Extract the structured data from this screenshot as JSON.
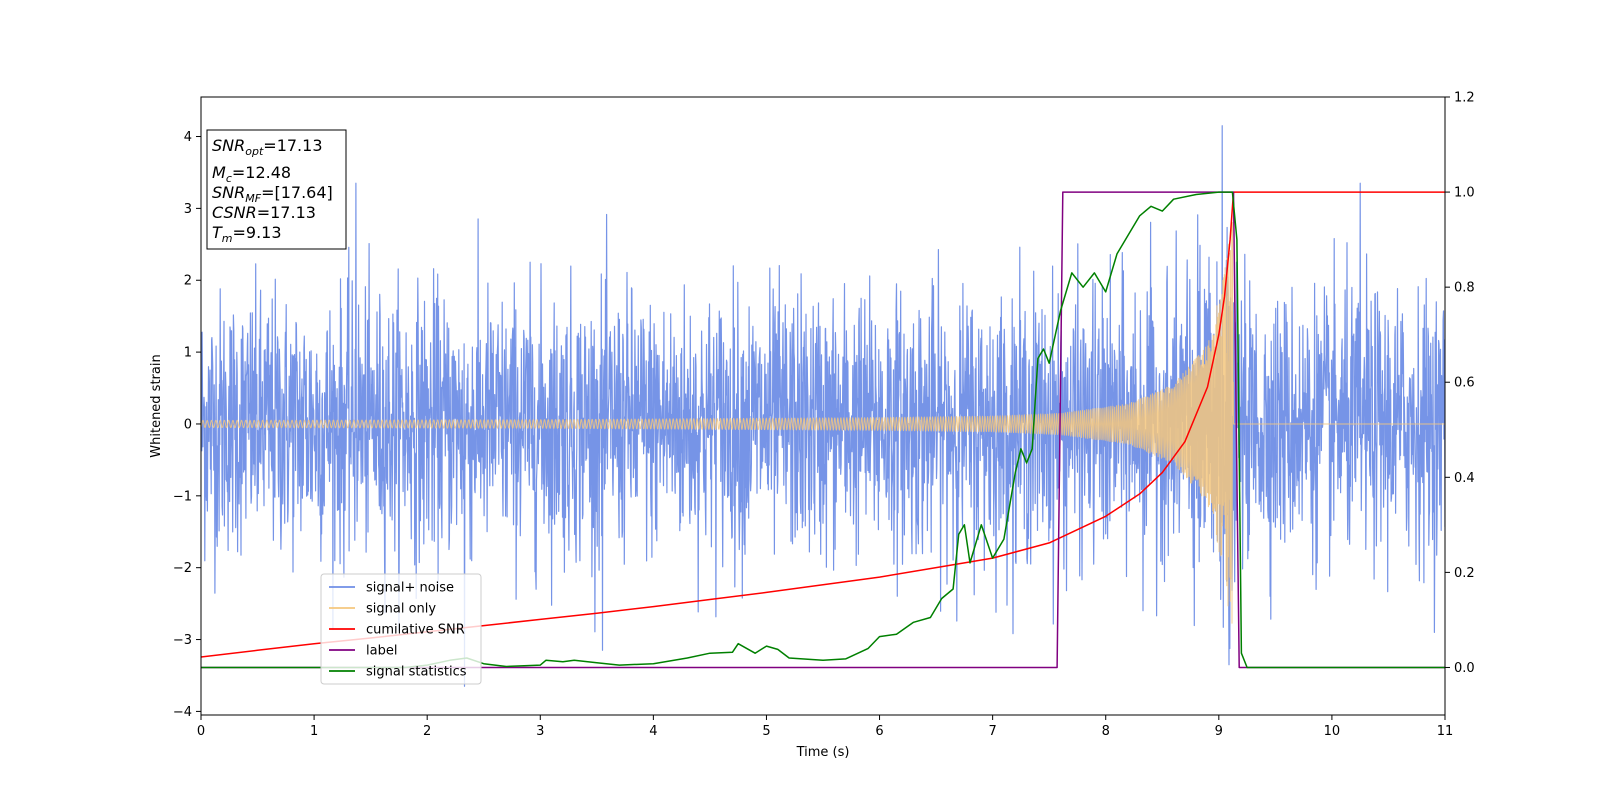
{
  "chart_data": {
    "type": "line",
    "title": "",
    "xlabel": "Time (s)",
    "ylabel": "Whitened strain",
    "y2label": "",
    "xlim": [
      0,
      11
    ],
    "ylim": [
      -4.05,
      4.55
    ],
    "y2lim": [
      -0.1,
      1.2
    ],
    "x_ticks": [
      0,
      1,
      2,
      3,
      4,
      5,
      6,
      7,
      8,
      9,
      10,
      11
    ],
    "y_ticks": [
      -4,
      -3,
      -2,
      -1,
      0,
      1,
      2,
      3,
      4
    ],
    "y2_ticks": [
      0.0,
      0.2,
      0.4,
      0.6,
      0.8,
      1.0,
      1.2
    ],
    "x_tick_labels": [
      "0",
      "1",
      "2",
      "3",
      "4",
      "5",
      "6",
      "7",
      "8",
      "9",
      "10",
      "11"
    ],
    "y_tick_labels": [
      "−4",
      "−3",
      "−2",
      "−1",
      "0",
      "1",
      "2",
      "3",
      "4"
    ],
    "y2_tick_labels": [
      "0.0",
      "0.2",
      "0.4",
      "0.6",
      "0.8",
      "1.0",
      "1.2"
    ],
    "grid": false,
    "legend_placement": "lower-left",
    "annotation": {
      "snr_opt": {
        "sym": "SNR",
        "sub": "opt",
        "value": "=17.13"
      },
      "mc": {
        "sym": "M",
        "sub": "c",
        "value": "=12.48"
      },
      "snr_mf": {
        "sym": "SNR",
        "sub": "MF",
        "value": "=[17.64]"
      },
      "csnr": {
        "sym": "CSNR",
        "sub": "",
        "value": "=17.13"
      },
      "tm": {
        "sym": "T",
        "sub": "m",
        "value": "=9.13"
      }
    },
    "series": [
      {
        "name": "signal+ noise",
        "axis": "left",
        "color": "#6f8ee6",
        "kind": "noise",
        "noise_sigma": 0.95,
        "extrema": [
          [
            1.37,
            3.35
          ],
          [
            9.03,
            4.15
          ],
          [
            10.25,
            3.35
          ],
          [
            2.33,
            -3.65
          ],
          [
            9.09,
            -3.35
          ],
          [
            3.55,
            -3.15
          ]
        ]
      },
      {
        "name": "signal only",
        "axis": "left",
        "color": "#f5c77e",
        "kind": "chirp",
        "merger_time": 9.13,
        "envelope": [
          [
            0,
            0.05
          ],
          [
            3,
            0.06
          ],
          [
            6,
            0.09
          ],
          [
            7,
            0.11
          ],
          [
            7.6,
            0.15
          ],
          [
            8.2,
            0.28
          ],
          [
            8.6,
            0.55
          ],
          [
            8.9,
            1.1
          ],
          [
            9.05,
            2.1
          ],
          [
            9.12,
            3.2
          ],
          [
            9.13,
            0
          ]
        ]
      },
      {
        "name": "cumilative SNR",
        "axis": "right",
        "color": "#ff0000",
        "points": [
          [
            0,
            0.022
          ],
          [
            0.5,
            0.036
          ],
          [
            1,
            0.05
          ],
          [
            1.5,
            0.062
          ],
          [
            2,
            0.075
          ],
          [
            2.5,
            0.088
          ],
          [
            3,
            0.101
          ],
          [
            3.5,
            0.114
          ],
          [
            4,
            0.128
          ],
          [
            4.5,
            0.143
          ],
          [
            5,
            0.158
          ],
          [
            5.5,
            0.174
          ],
          [
            6,
            0.19
          ],
          [
            6.5,
            0.21
          ],
          [
            7,
            0.23
          ],
          [
            7.5,
            0.262
          ],
          [
            8,
            0.318
          ],
          [
            8.3,
            0.365
          ],
          [
            8.5,
            0.41
          ],
          [
            8.7,
            0.475
          ],
          [
            8.9,
            0.59
          ],
          [
            9.0,
            0.7
          ],
          [
            9.05,
            0.78
          ],
          [
            9.1,
            0.9
          ],
          [
            9.13,
            1.0
          ],
          [
            11,
            1.0
          ]
        ]
      },
      {
        "name": "label",
        "axis": "right",
        "color": "#800080",
        "points": [
          [
            0,
            0.0
          ],
          [
            7.57,
            0.0
          ],
          [
            7.62,
            1.0
          ],
          [
            9.13,
            1.0
          ],
          [
            9.18,
            0.0
          ],
          [
            11,
            0.0
          ]
        ]
      },
      {
        "name": "signal statistics",
        "axis": "right",
        "color": "#008000",
        "points": [
          [
            0,
            0.0
          ],
          [
            1.8,
            0.0
          ],
          [
            2.0,
            0.005
          ],
          [
            2.2,
            0.015
          ],
          [
            2.35,
            0.02
          ],
          [
            2.5,
            0.008
          ],
          [
            2.7,
            0.002
          ],
          [
            3.0,
            0.005
          ],
          [
            3.05,
            0.015
          ],
          [
            3.2,
            0.012
          ],
          [
            3.3,
            0.015
          ],
          [
            3.5,
            0.01
          ],
          [
            3.7,
            0.005
          ],
          [
            4.0,
            0.008
          ],
          [
            4.3,
            0.02
          ],
          [
            4.5,
            0.03
          ],
          [
            4.7,
            0.032
          ],
          [
            4.75,
            0.05
          ],
          [
            4.9,
            0.03
          ],
          [
            5.0,
            0.045
          ],
          [
            5.1,
            0.038
          ],
          [
            5.2,
            0.02
          ],
          [
            5.5,
            0.015
          ],
          [
            5.7,
            0.018
          ],
          [
            5.9,
            0.04
          ],
          [
            6.0,
            0.065
          ],
          [
            6.15,
            0.07
          ],
          [
            6.3,
            0.095
          ],
          [
            6.45,
            0.105
          ],
          [
            6.55,
            0.145
          ],
          [
            6.65,
            0.165
          ],
          [
            6.7,
            0.28
          ],
          [
            6.75,
            0.3
          ],
          [
            6.8,
            0.22
          ],
          [
            6.9,
            0.3
          ],
          [
            7.0,
            0.23
          ],
          [
            7.1,
            0.27
          ],
          [
            7.2,
            0.41
          ],
          [
            7.25,
            0.46
          ],
          [
            7.3,
            0.43
          ],
          [
            7.35,
            0.46
          ],
          [
            7.4,
            0.65
          ],
          [
            7.45,
            0.67
          ],
          [
            7.5,
            0.64
          ],
          [
            7.6,
            0.75
          ],
          [
            7.7,
            0.83
          ],
          [
            7.8,
            0.8
          ],
          [
            7.9,
            0.83
          ],
          [
            8.0,
            0.79
          ],
          [
            8.1,
            0.87
          ],
          [
            8.2,
            0.91
          ],
          [
            8.3,
            0.95
          ],
          [
            8.4,
            0.97
          ],
          [
            8.5,
            0.96
          ],
          [
            8.6,
            0.985
          ],
          [
            8.8,
            0.995
          ],
          [
            9.0,
            1.0
          ],
          [
            9.12,
            1.0
          ],
          [
            9.16,
            0.9
          ],
          [
            9.2,
            0.03
          ],
          [
            9.25,
            0.0
          ],
          [
            11,
            0.0
          ]
        ]
      }
    ]
  }
}
